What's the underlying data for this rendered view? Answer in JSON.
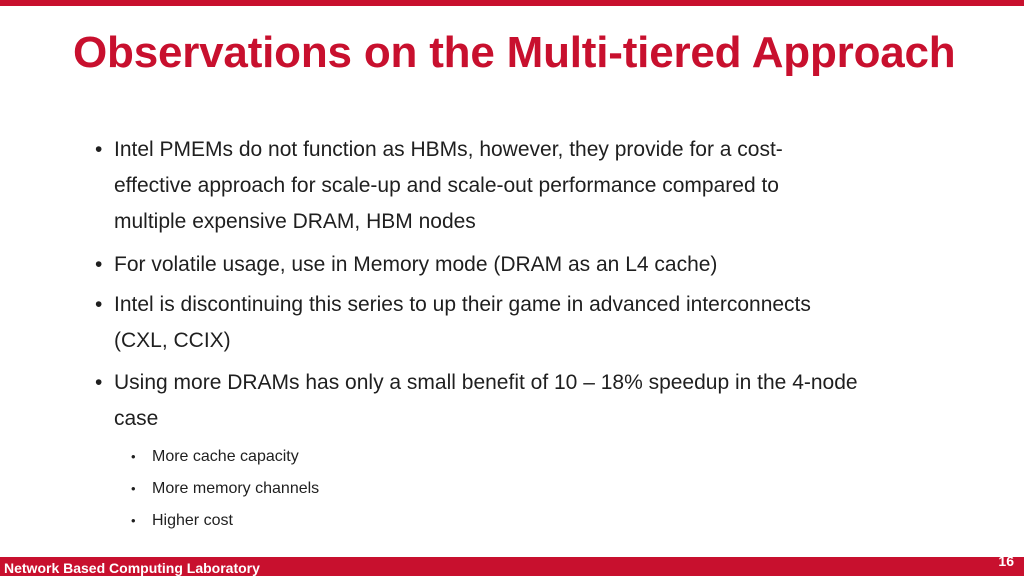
{
  "slide": {
    "title": "Observations on the Multi-tiered Approach",
    "bullets": [
      {
        "line1": "Intel PMEMs do not function as HBMs, however, they provide for a cost-",
        "line2": "effective approach for scale-up and scale-out performance compared to",
        "line3": "multiple expensive DRAM, HBM nodes"
      },
      {
        "line1": "For volatile usage, use in Memory mode (DRAM as an L4 cache)"
      },
      {
        "line1": "Intel is discontinuing this series to up their game in advanced interconnects",
        "line2": "(CXL, CCIX)"
      },
      {
        "line1": "Using more DRAMs has only a small benefit of 10 – 18% speedup in the 4-node",
        "line2": "case"
      }
    ],
    "sub_bullets": [
      "More cache capacity",
      "More memory channels",
      "Higher cost"
    ],
    "bullet_glyph": "•"
  },
  "footer": {
    "lab_name": "Network Based Computing Laboratory",
    "page_number": "16"
  },
  "colors": {
    "accent": "#c8102e",
    "text": "#1f1f1f"
  }
}
